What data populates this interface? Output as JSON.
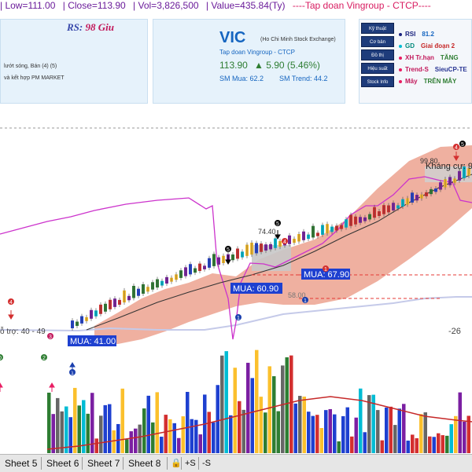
{
  "header": {
    "low": "| Low=111.00",
    "close": "| Close=113.90",
    "vol": "| Vol=3,826,500",
    "value": "| Value=435.84(Ty)",
    "company_line": "----Tap doan Vingroup - CTCP----"
  },
  "left_panel": {
    "rs_label": "RS:",
    "rs_value": "98 Giu",
    "line1": "lướt sóng, Bán (4) (5)",
    "line2": "và kết hợp PM MARKET"
  },
  "stock": {
    "ticker": "VIC",
    "exchange": "(Ho Chi Minh Stock Exchange)",
    "company": "Tap doan Vingroup - CTCP",
    "price": "113.90",
    "change": "▲ 5.90 (5.46%)",
    "sm_mua": "SM Mua: 62.2",
    "sm_trend": "SM Trend: 44.2"
  },
  "side_buttons": [
    "Kỹ thuật",
    "Cơ bản",
    "Đồ thị",
    "Hiệu suất",
    "Stock Info"
  ],
  "indicators": [
    {
      "label": "RSI",
      "value": "81.2",
      "dot": "#1a237e",
      "label_color": "#1a237e",
      "value_color": "#1565c0"
    },
    {
      "label": "GD",
      "value": "Giai đoạn 2",
      "dot": "#00bcd4",
      "label_color": "#00897b",
      "value_color": "#c62828"
    },
    {
      "label": "XH Tr.hạn",
      "value": "TĂNG",
      "dot": "#e91e63",
      "label_color": "#c2185b",
      "value_color": "#2e7d32"
    },
    {
      "label": "Trend-S",
      "value": "SieuCP-TE",
      "dot": "#e91e63",
      "label_color": "#c2185b",
      "value_color": "#283593"
    },
    {
      "label": "Mây",
      "value": "TRÊN MÂY",
      "dot": "#e91e63",
      "label_color": "#c2185b",
      "value_color": "#2e7d32"
    }
  ],
  "chart_labels": {
    "p1": "99.80",
    "p2": "74.40",
    "khang_cu": "Kháng cự: 9",
    "ho_tro": "ỗ trợ: 40 - 49",
    "buy1": "MUA: 41.00",
    "buy2": "MUA: 60.90",
    "buy3": "MUA: 67.90",
    "p3": "58.00",
    "neg": "-26",
    "n1": "1",
    "n2": "1",
    "n3": "1",
    "n4": "1",
    "n5": "5",
    "n6": "5",
    "n7": "5",
    "n8": "4",
    "n9": "4",
    "n10": "4",
    "n11": "2",
    "n12": "0",
    "n13": "3"
  },
  "tabs": [
    "Sheet 5",
    "Sheet 6",
    "Sheet 7",
    "Sheet 8"
  ],
  "tab_controls": {
    "lock": "🔒",
    "plus_s": "+S",
    "minus_s": "-S"
  },
  "colors": {
    "price_up": "#2e7d32",
    "accent": "#1565c0",
    "cloud": "#eca28f",
    "buy_box": "#1e40d0"
  }
}
